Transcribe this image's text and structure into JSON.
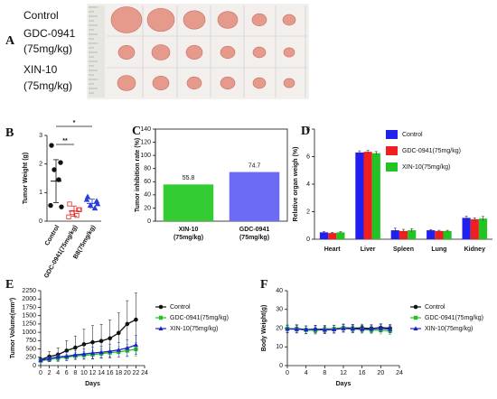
{
  "panel_a": {
    "panel": "A",
    "rows": [
      [
        "Control"
      ],
      [
        "GDC-0941",
        "(75mg/kg)"
      ],
      [
        "XIN-10",
        "(75mg/kg)"
      ]
    ]
  },
  "chart_data": [
    {
      "type": "dot",
      "panel": "B",
      "y_label": "Tumor Weight (g)",
      "categories": [
        "Control",
        "GDC-0941(75mg/kg)",
        "B8(75mg/kg)"
      ],
      "groups": [
        {
          "name": "Control",
          "color": "#111111",
          "values": [
            2.65,
            2.05,
            1.8,
            1.45,
            0.55,
            0.5
          ],
          "mean": 1.4,
          "sd": 0.75
        },
        {
          "name": "GDC-0941(75mg/kg)",
          "color": "#e8231f",
          "values": [
            0.6,
            0.4,
            0.3,
            0.2,
            0.15,
            0.4
          ],
          "mean": 0.35,
          "sd": 0.18
        },
        {
          "name": "B8(75mg/kg)",
          "color": "#2a3fd6",
          "values": [
            0.85,
            0.7,
            0.55,
            0.45,
            0.75,
            0.6
          ],
          "mean": 0.62,
          "sd": 0.15
        }
      ],
      "annotations": [
        "**",
        "*"
      ],
      "ylim": [
        0,
        3
      ],
      "yticks": [
        0,
        1,
        2,
        3
      ]
    },
    {
      "type": "bar",
      "panel": "C",
      "y_label": "Tumor inhibition rate (%)",
      "categories": [
        [
          "XIN-10",
          "(75mg/kg)"
        ],
        [
          "GDC-0941",
          "(75mg/kg)"
        ]
      ],
      "values": [
        55.8,
        74.7
      ],
      "colors": [
        "#33cc33",
        "#6b6bf5"
      ],
      "ylim": [
        0,
        140
      ],
      "yticks": [
        0,
        20,
        40,
        60,
        80,
        100,
        120,
        140
      ]
    },
    {
      "type": "grouped_bar",
      "panel": "D",
      "y_label": "Relative organ weigh (%)",
      "categories": [
        "Heart",
        "Liver",
        "Spleen",
        "Lung",
        "Kidney"
      ],
      "series": [
        {
          "name": "Control",
          "color": "#2020f0",
          "values": [
            0.5,
            6.3,
            0.65,
            0.65,
            1.55
          ],
          "errors": [
            0.05,
            0.12,
            0.15,
            0.05,
            0.12
          ]
        },
        {
          "name": "GDC-0941(75mg/kg)",
          "color": "#f01e1e",
          "values": [
            0.45,
            6.35,
            0.6,
            0.6,
            1.45
          ],
          "errors": [
            0.05,
            0.1,
            0.12,
            0.05,
            0.1
          ]
        },
        {
          "name": "XIN-10(75mg/kg)",
          "color": "#22c322",
          "values": [
            0.5,
            6.25,
            0.65,
            0.6,
            1.5
          ],
          "errors": [
            0.05,
            0.12,
            0.12,
            0.05,
            0.15
          ]
        }
      ],
      "legend": "upper right",
      "ylim": [
        0,
        8
      ],
      "yticks": [
        0,
        2,
        4,
        6,
        8
      ]
    },
    {
      "type": "line",
      "panel": "E",
      "x_label": "Days",
      "y_label": "Tumor Volume(mm³)",
      "x": [
        0,
        2,
        4,
        6,
        8,
        10,
        12,
        14,
        16,
        18,
        20,
        22
      ],
      "series": [
        {
          "name": "Control",
          "color": "#111111",
          "marker": "circle",
          "values": [
            180,
            270,
            330,
            450,
            540,
            640,
            700,
            740,
            820,
            980,
            1250,
            1380
          ],
          "errors": [
            60,
            150,
            200,
            300,
            350,
            450,
            500,
            500,
            550,
            600,
            700,
            800
          ]
        },
        {
          "name": "GDC-0941(75mg/kg)",
          "color": "#22c322",
          "marker": "square",
          "values": [
            150,
            180,
            230,
            250,
            290,
            310,
            330,
            360,
            390,
            410,
            450,
            490
          ],
          "errors": [
            40,
            60,
            80,
            90,
            100,
            110,
            120,
            130,
            150,
            160,
            180,
            200
          ]
        },
        {
          "name": "XIN-10(75mg/kg)",
          "color": "#2020d0",
          "marker": "triangle",
          "values": [
            160,
            210,
            260,
            280,
            320,
            350,
            380,
            400,
            430,
            470,
            530,
            620
          ],
          "errors": [
            50,
            80,
            100,
            120,
            130,
            150,
            170,
            180,
            200,
            220,
            250,
            280
          ]
        }
      ],
      "xlim": [
        0,
        24
      ],
      "xticks": [
        0,
        2,
        4,
        6,
        8,
        10,
        12,
        14,
        16,
        18,
        20,
        22,
        24
      ],
      "ylim": [
        0,
        2250
      ],
      "yticks": [
        0,
        250,
        500,
        750,
        1000,
        1250,
        1500,
        1750,
        2000,
        2250
      ]
    },
    {
      "type": "line",
      "panel": "F",
      "x_label": "Days",
      "y_label": "Body Weight(g)",
      "x": [
        0,
        2,
        4,
        6,
        8,
        10,
        12,
        14,
        16,
        18,
        20,
        22
      ],
      "series": [
        {
          "name": "Control",
          "color": "#111111",
          "marker": "circle",
          "values": [
            19.5,
            19.8,
            19.2,
            19.3,
            19.5,
            19.6,
            20.2,
            20.0,
            20.1,
            19.8,
            20.3,
            20.0
          ],
          "errors": [
            2,
            2,
            2,
            2,
            2,
            2,
            2,
            2,
            2,
            2,
            2,
            2
          ]
        },
        {
          "name": "GDC-0941(75mg/kg)",
          "color": "#22c322",
          "marker": "square",
          "values": [
            19.8,
            19.5,
            19.0,
            18.8,
            19.2,
            19.6,
            20.0,
            19.5,
            19.3,
            19.0,
            18.9,
            18.5
          ],
          "errors": [
            2,
            2,
            2,
            2,
            2,
            2,
            2,
            2,
            2,
            2,
            2,
            2
          ]
        },
        {
          "name": "XIN-10(75mg/kg)",
          "color": "#2020d0",
          "marker": "triangle",
          "values": [
            19.6,
            19.4,
            19.2,
            19.5,
            19.0,
            19.3,
            19.8,
            19.7,
            19.5,
            19.6,
            19.9,
            19.4
          ],
          "errors": [
            2,
            2,
            2,
            2,
            2,
            2,
            2,
            2,
            2,
            2,
            2,
            2
          ]
        }
      ],
      "xlim": [
        0,
        24
      ],
      "xticks": [
        0,
        4,
        8,
        12,
        16,
        20,
        24
      ],
      "ylim": [
        0,
        40
      ],
      "yticks": [
        0,
        10,
        20,
        30,
        40
      ]
    }
  ]
}
